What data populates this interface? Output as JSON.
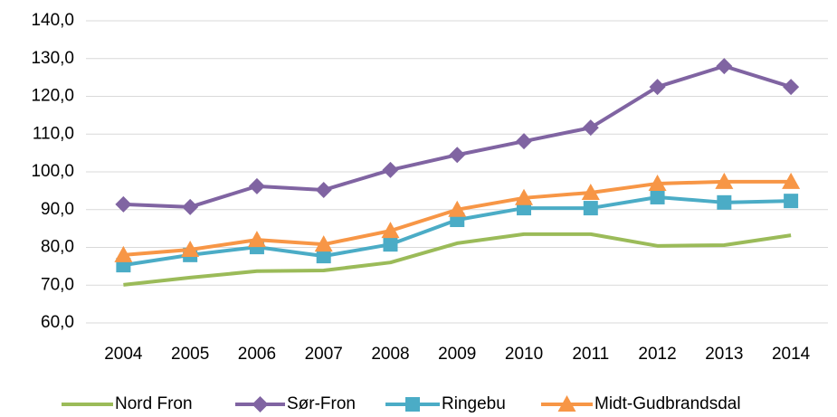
{
  "chart_data": {
    "type": "line",
    "categories": [
      "2004",
      "2005",
      "2006",
      "2007",
      "2008",
      "2009",
      "2010",
      "2011",
      "2012",
      "2013",
      "2014"
    ],
    "series": [
      {
        "name": "Nord Fron",
        "color": "#9bbb59",
        "values": [
          70.1,
          72.0,
          73.7,
          73.9,
          76.0,
          81.1,
          83.5,
          83.5,
          80.4,
          80.6,
          83.2
        ]
      },
      {
        "name": "Sør-Fron",
        "color": "#8064a2",
        "marker": "diamond",
        "values": [
          91.4,
          90.7,
          96.2,
          95.2,
          100.5,
          104.5,
          108.1,
          111.7,
          122.5,
          128.0,
          122.5
        ]
      },
      {
        "name": "Ringebu",
        "color": "#4bacc6",
        "marker": "square",
        "values": [
          75.3,
          78.0,
          80.1,
          77.7,
          80.8,
          87.3,
          90.4,
          90.4,
          93.3,
          91.9,
          92.3
        ]
      },
      {
        "name": "Midt-Gudbrandsdal",
        "color": "#f79646",
        "marker": "triangle",
        "values": [
          78.0,
          79.4,
          82.0,
          80.8,
          84.4,
          90.0,
          93.1,
          94.5,
          96.9,
          97.4,
          97.4
        ]
      }
    ],
    "ylim": [
      60,
      140
    ],
    "yticks": [
      {
        "value": 60,
        "label": "60,0"
      },
      {
        "value": 70,
        "label": "70,0"
      },
      {
        "value": 80,
        "label": "80,0"
      },
      {
        "value": 90,
        "label": "90,0"
      },
      {
        "value": 100,
        "label": "100,0"
      },
      {
        "value": 110,
        "label": "110,0"
      },
      {
        "value": 120,
        "label": "120,0"
      },
      {
        "value": 130,
        "label": "130,0"
      },
      {
        "value": 140,
        "label": "140,0"
      }
    ],
    "grid": true,
    "legend": "bottom"
  }
}
